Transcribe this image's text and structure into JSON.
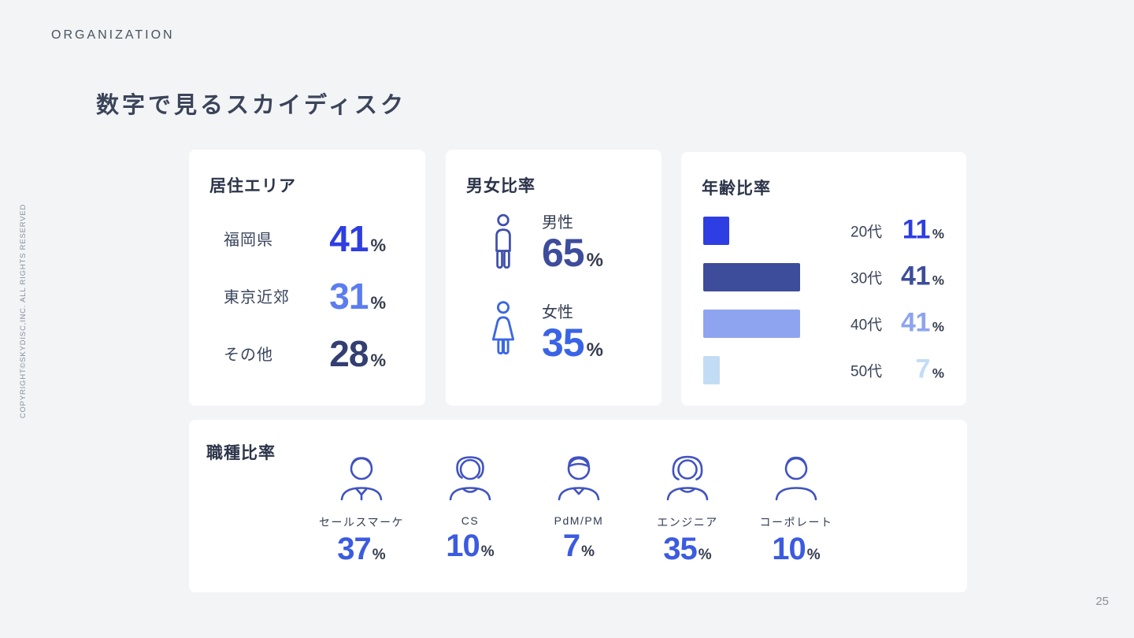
{
  "page": {
    "eyebrow": "ORGANIZATION",
    "title": "数字で見るスカイディスク",
    "copyright": "COPYRIGHT©SKYDISC,INC. ALL RIGHTS RESERVED",
    "page_number": "25"
  },
  "chart_data": [
    {
      "type": "table",
      "title": "居住エリア",
      "categories": [
        "福岡県",
        "東京近郊",
        "その他"
      ],
      "values": [
        41,
        31,
        28
      ],
      "unit": "%"
    },
    {
      "type": "table",
      "title": "男女比率",
      "categories": [
        "男性",
        "女性"
      ],
      "values": [
        65,
        35
      ],
      "unit": "%",
      "icons": [
        "male-icon",
        "female-icon"
      ]
    },
    {
      "type": "bar",
      "title": "年齢比率",
      "orientation": "horizontal",
      "categories": [
        "20代",
        "30代",
        "40代",
        "50代"
      ],
      "values": [
        11,
        41,
        41,
        7
      ],
      "unit": "%",
      "xlim": [
        0,
        50
      ],
      "grid": false,
      "bar_colors": [
        "#2e3ee2",
        "#3d4c9b",
        "#8ea4f0",
        "#c3dcf5"
      ]
    },
    {
      "type": "table",
      "title": "職種比率",
      "categories": [
        "セールスマーケ",
        "CS",
        "PdM/PM",
        "エンジニア",
        "コーポレート"
      ],
      "values": [
        37,
        10,
        7,
        35,
        10
      ],
      "unit": "%",
      "icons": [
        "sales-avatar-icon",
        "cs-avatar-icon",
        "pdm-avatar-icon",
        "engineer-avatar-icon",
        "corporate-avatar-icon"
      ]
    }
  ],
  "colors": {
    "background": "#f2f4f6",
    "card": "#ffffff",
    "residence_values": [
      "#2e3ee2",
      "#5c7df0",
      "#333f72"
    ],
    "gender_values": [
      "#3d4c9b",
      "#3a64e6"
    ],
    "age_values": [
      "#2e3ee2",
      "#3d4c9b",
      "#8ea4f0",
      "#c3dcf5"
    ],
    "job_value": "#3c5be0",
    "percent_sign": "#343b4e",
    "male_icon": "#3f51ad",
    "female_icon": "#3c67e3",
    "avatar_icon": "#4053c0"
  }
}
